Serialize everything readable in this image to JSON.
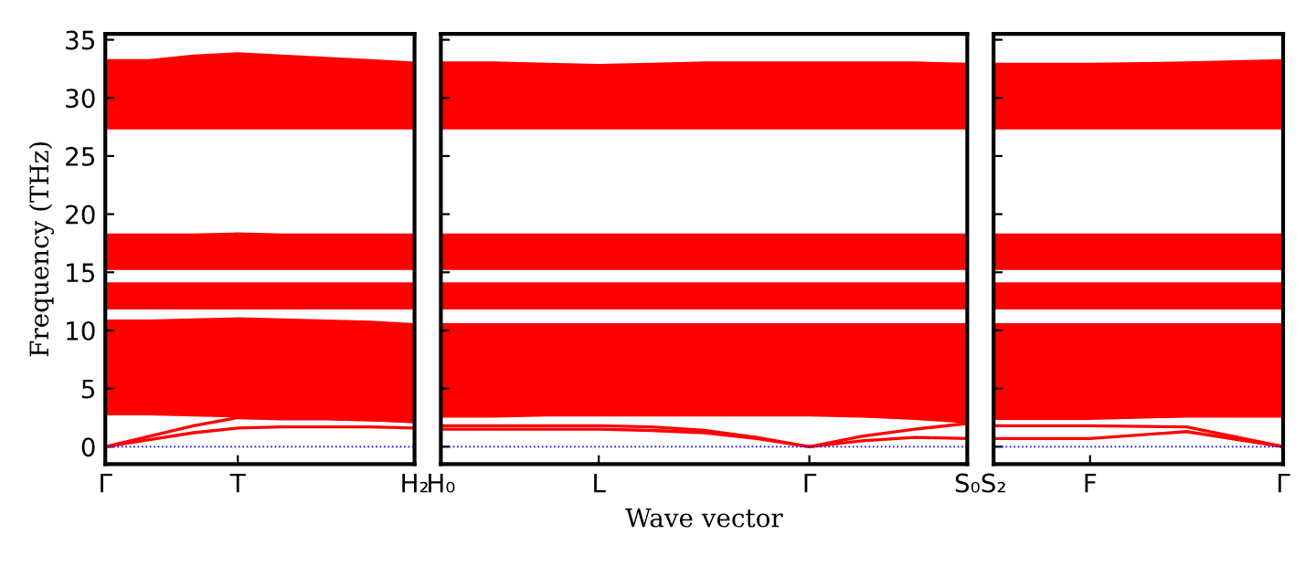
{
  "chart_data": [
    {
      "type": "line",
      "ylabel": "Frequency (THz)",
      "categories": [
        "Γ",
        null,
        null,
        "T",
        null,
        null,
        null,
        "H₂"
      ],
      "ylim": [
        -1.5,
        35.5
      ],
      "yticks": [
        0,
        5,
        10,
        15,
        20,
        25,
        30,
        35
      ],
      "grid": false,
      "marker": "none",
      "line_style": "solid",
      "ref_lines": [
        {
          "axis": "y",
          "value": 0,
          "color": "#0000ff",
          "line_style": "dotted"
        }
      ],
      "series": [
        {
          "color": "#ff0000",
          "values": [
            10.8,
            10.8,
            10.9,
            11.0,
            10.9,
            10.8,
            10.7,
            10.5
          ],
          "lower": [
            2.7,
            2.7,
            2.6,
            2.5,
            2.4,
            2.3,
            2.2,
            2.0
          ],
          "upper": [
            10.8,
            10.8,
            10.9,
            11.0,
            10.9,
            10.8,
            10.7,
            10.5
          ]
        },
        {
          "color": "#ff0000",
          "values": [
            14.0,
            14.0,
            14.0,
            14.0,
            14.0,
            14.0,
            14.0,
            14.0
          ],
          "lower": [
            11.8,
            11.8,
            11.8,
            11.8,
            11.8,
            11.8,
            11.8,
            11.8
          ],
          "upper": [
            14.0,
            14.0,
            14.0,
            14.0,
            14.0,
            14.0,
            14.0,
            14.0
          ]
        },
        {
          "color": "#ff0000",
          "values": [
            18.2,
            18.2,
            18.2,
            18.3,
            18.2,
            18.2,
            18.2,
            18.2
          ],
          "lower": [
            15.2,
            15.2,
            15.2,
            15.2,
            15.2,
            15.2,
            15.2,
            15.2
          ],
          "upper": [
            18.2,
            18.2,
            18.2,
            18.3,
            18.2,
            18.2,
            18.2,
            18.2
          ]
        },
        {
          "color": "#ff0000",
          "values": [
            33.2,
            33.2,
            33.6,
            33.8,
            33.6,
            33.4,
            33.2,
            33.0
          ],
          "lower": [
            27.3,
            27.3,
            27.3,
            27.3,
            27.3,
            27.3,
            27.3,
            27.3
          ],
          "upper": [
            33.2,
            33.2,
            33.6,
            33.8,
            33.6,
            33.4,
            33.2,
            33.0
          ]
        },
        {
          "color": "#ff0000",
          "values": [
            0,
            0.6,
            1.2,
            1.6,
            1.7,
            1.7,
            1.7,
            1.6
          ]
        },
        {
          "color": "#ff0000",
          "values": [
            0,
            0.9,
            1.8,
            2.5,
            2.4,
            2.4,
            2.3,
            2.2
          ]
        }
      ]
    },
    {
      "type": "line",
      "xlabel": "Wave vector",
      "categories": [
        "H₀",
        null,
        null,
        "L",
        null,
        null,
        null,
        "Γ",
        null,
        null,
        "S₀"
      ],
      "ylim": [
        -1.5,
        35.5
      ],
      "yticks": [
        0,
        5,
        10,
        15,
        20,
        25,
        30,
        35
      ],
      "tick_labels": "x",
      "grid": false,
      "marker": "none",
      "line_style": "solid",
      "ref_lines": [
        {
          "axis": "y",
          "value": 0,
          "color": "#0000ff",
          "line_style": "dotted"
        }
      ],
      "series": [
        {
          "color": "#ff0000",
          "values": [
            10.5,
            10.5,
            10.5,
            10.5,
            10.5,
            10.5,
            10.5,
            10.5,
            10.5,
            10.5,
            10.5
          ],
          "lower": [
            2.5,
            2.5,
            2.6,
            2.6,
            2.6,
            2.6,
            2.6,
            2.6,
            2.5,
            2.3,
            2.0
          ],
          "upper": [
            10.5,
            10.5,
            10.5,
            10.5,
            10.5,
            10.5,
            10.5,
            10.5,
            10.5,
            10.5,
            10.5
          ]
        },
        {
          "color": "#ff0000",
          "values": [
            14.0,
            14.0,
            14.0,
            14.0,
            14.0,
            14.0,
            14.0,
            14.0,
            14.0,
            14.0,
            14.0
          ],
          "lower": [
            11.8,
            11.8,
            11.8,
            11.8,
            11.8,
            11.8,
            11.8,
            11.8,
            11.8,
            11.8,
            11.8
          ],
          "upper": [
            14.0,
            14.0,
            14.0,
            14.0,
            14.0,
            14.0,
            14.0,
            14.0,
            14.0,
            14.0,
            14.0
          ]
        },
        {
          "color": "#ff0000",
          "values": [
            18.2,
            18.2,
            18.2,
            18.2,
            18.2,
            18.2,
            18.2,
            18.2,
            18.2,
            18.2,
            18.2
          ],
          "lower": [
            15.2,
            15.2,
            15.2,
            15.2,
            15.2,
            15.2,
            15.2,
            15.2,
            15.2,
            15.2,
            15.2
          ],
          "upper": [
            18.2,
            18.2,
            18.2,
            18.2,
            18.2,
            18.2,
            18.2,
            18.2,
            18.2,
            18.2,
            18.2
          ]
        },
        {
          "color": "#ff0000",
          "values": [
            33.0,
            33.0,
            32.9,
            32.8,
            32.9,
            33.0,
            33.0,
            33.0,
            33.0,
            33.0,
            32.9
          ],
          "lower": [
            27.3,
            27.3,
            27.3,
            27.3,
            27.3,
            27.3,
            27.3,
            27.3,
            27.3,
            27.3,
            27.3
          ],
          "upper": [
            33.0,
            33.0,
            32.9,
            32.8,
            32.9,
            33.0,
            33.0,
            33.0,
            33.0,
            33.0,
            32.9
          ]
        },
        {
          "color": "#ff0000",
          "values": [
            1.5,
            1.5,
            1.5,
            1.5,
            1.4,
            1.2,
            0.7,
            0,
            0.5,
            0.8,
            0.7
          ]
        },
        {
          "color": "#ff0000",
          "values": [
            1.8,
            1.8,
            1.8,
            1.8,
            1.7,
            1.4,
            0.8,
            0,
            0.9,
            1.5,
            2.0
          ]
        }
      ]
    },
    {
      "type": "line",
      "categories": [
        "S₂",
        "F",
        null,
        "Γ"
      ],
      "ylim": [
        -1.5,
        35.5
      ],
      "yticks": [
        0,
        5,
        10,
        15,
        20,
        25,
        30,
        35
      ],
      "tick_labels": "x",
      "grid": false,
      "marker": "none",
      "line_style": "solid",
      "ref_lines": [
        {
          "axis": "y",
          "value": 0,
          "color": "#0000ff",
          "line_style": "dotted"
        }
      ],
      "series": [
        {
          "color": "#ff0000",
          "values": [
            10.5,
            10.5,
            10.5,
            10.5
          ],
          "lower": [
            2.3,
            2.3,
            2.5,
            2.5
          ],
          "upper": [
            10.5,
            10.5,
            10.5,
            10.5
          ]
        },
        {
          "color": "#ff0000",
          "values": [
            14.0,
            14.0,
            14.0,
            14.0
          ],
          "lower": [
            11.8,
            11.8,
            11.8,
            11.8
          ],
          "upper": [
            14.0,
            14.0,
            14.0,
            14.0
          ]
        },
        {
          "color": "#ff0000",
          "values": [
            18.2,
            18.2,
            18.2,
            18.2
          ],
          "lower": [
            15.2,
            15.2,
            15.2,
            15.2
          ],
          "upper": [
            18.2,
            18.2,
            18.2,
            18.2
          ]
        },
        {
          "color": "#ff0000",
          "values": [
            32.9,
            32.9,
            33.0,
            33.2
          ],
          "lower": [
            27.3,
            27.3,
            27.3,
            27.3
          ],
          "upper": [
            32.9,
            32.9,
            33.0,
            33.2
          ]
        },
        {
          "color": "#ff0000",
          "values": [
            0.7,
            0.7,
            1.3,
            0
          ]
        },
        {
          "color": "#ff0000",
          "values": [
            1.8,
            1.8,
            1.7,
            0
          ]
        }
      ]
    }
  ]
}
